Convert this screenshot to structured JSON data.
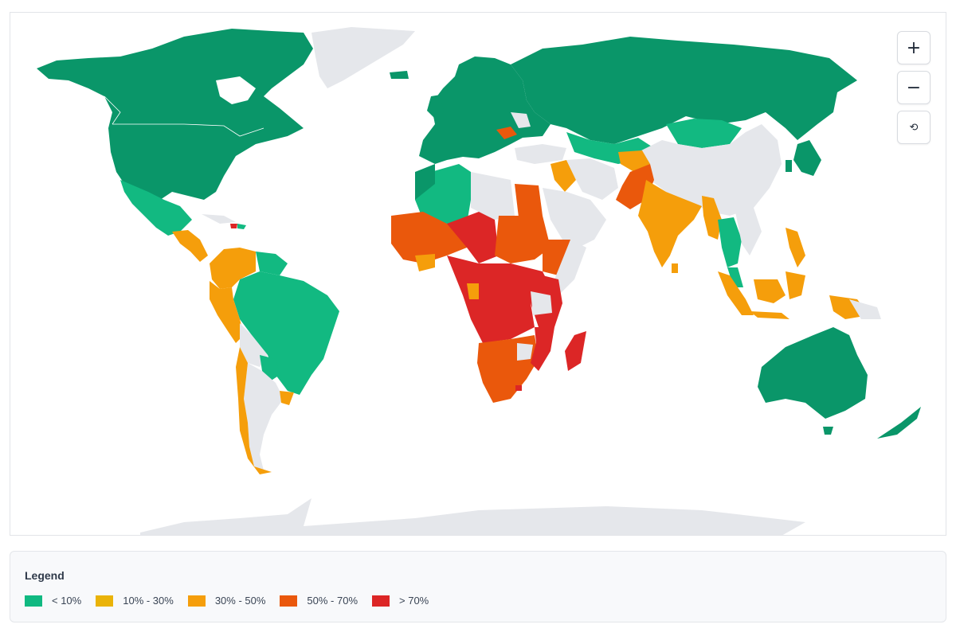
{
  "map": {
    "controls": {
      "zoom_in": "+",
      "zoom_out": "−",
      "reset": "⟲"
    }
  },
  "legend": {
    "title": "Legend",
    "items": [
      {
        "label": "< 10%",
        "color": "#10b981"
      },
      {
        "label": "10% - 30%",
        "color": "#eab308"
      },
      {
        "label": "30% - 50%",
        "color": "#f59e0b"
      },
      {
        "label": "50% - 70%",
        "color": "#ea580c"
      },
      {
        "label": "> 70%",
        "color": "#dc2626"
      }
    ]
  },
  "colors": {
    "no_data": "#e5e7eb",
    "lt10_dark": "#0a9669",
    "lt10_light": "#12b981"
  }
}
